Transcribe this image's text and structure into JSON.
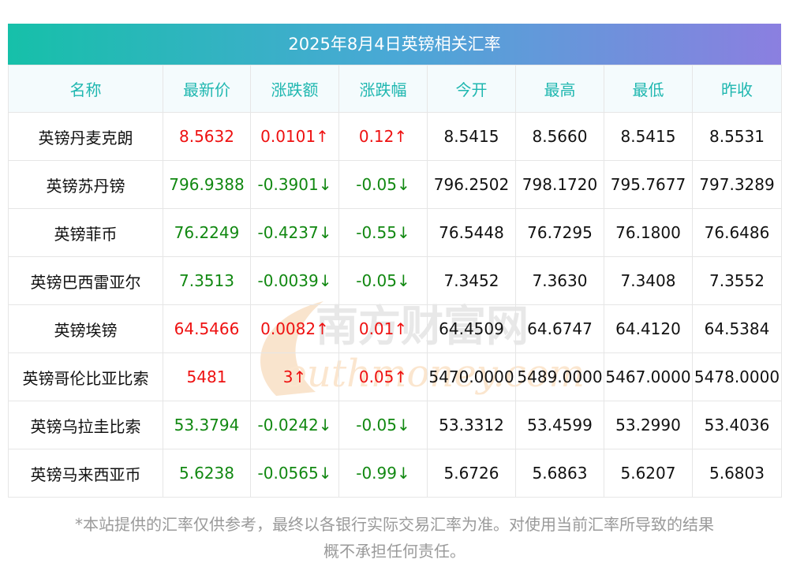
{
  "title": "2025年8月4日英镑相关汇率",
  "columns": [
    "名称",
    "最新价",
    "涨跌额",
    "涨跌幅",
    "今开",
    "最高",
    "最低",
    "昨收"
  ],
  "rows": [
    {
      "name": "英镑丹麦克朗",
      "latest": "8.5632",
      "change": "0.0101↑",
      "pct": "0.12↑",
      "open": "8.5415",
      "high": "8.5660",
      "low": "8.5415",
      "prev": "8.5531",
      "dir": "up"
    },
    {
      "name": "英镑苏丹镑",
      "latest": "796.9388",
      "change": "-0.3901↓",
      "pct": "-0.05↓",
      "open": "796.2502",
      "high": "798.1720",
      "low": "795.7677",
      "prev": "797.3289",
      "dir": "down"
    },
    {
      "name": "英镑菲币",
      "latest": "76.2249",
      "change": "-0.4237↓",
      "pct": "-0.55↓",
      "open": "76.5448",
      "high": "76.7295",
      "low": "76.1800",
      "prev": "76.6486",
      "dir": "down"
    },
    {
      "name": "英镑巴西雷亚尔",
      "latest": "7.3513",
      "change": "-0.0039↓",
      "pct": "-0.05↓",
      "open": "7.3452",
      "high": "7.3630",
      "low": "7.3408",
      "prev": "7.3552",
      "dir": "down"
    },
    {
      "name": "英镑埃镑",
      "latest": "64.5466",
      "change": "0.0082↑",
      "pct": "0.01↑",
      "open": "64.4509",
      "high": "64.6747",
      "low": "64.4120",
      "prev": "64.5384",
      "dir": "up"
    },
    {
      "name": "英镑哥伦比亚比索",
      "latest": "5481",
      "change": "3↑",
      "pct": "0.05↑",
      "open": "5470.0000",
      "high": "5489.0000",
      "low": "5467.0000",
      "prev": "5478.0000",
      "dir": "up"
    },
    {
      "name": "英镑乌拉圭比索",
      "latest": "53.3794",
      "change": "-0.0242↓",
      "pct": "-0.05↓",
      "open": "53.3312",
      "high": "53.4599",
      "low": "53.2990",
      "prev": "53.4036",
      "dir": "down"
    },
    {
      "name": "英镑马来西亚币",
      "latest": "5.6238",
      "change": "-0.0565↓",
      "pct": "-0.99↓",
      "open": "5.6726",
      "high": "5.6863",
      "low": "5.6207",
      "prev": "5.6803",
      "dir": "down"
    }
  ],
  "watermark": {
    "cn": "南方财富网",
    "en": "outhmoney.com"
  },
  "footnote": {
    "line1": "*本站提供的汇率仅供参考，最终以各银行实际交易汇率为准。对使用当前汇率所导致的结果",
    "line2": "概不承担任何责任。"
  },
  "colors": {
    "up": "#ee1111",
    "down": "#118811",
    "header_text": "#1fb7b0"
  }
}
